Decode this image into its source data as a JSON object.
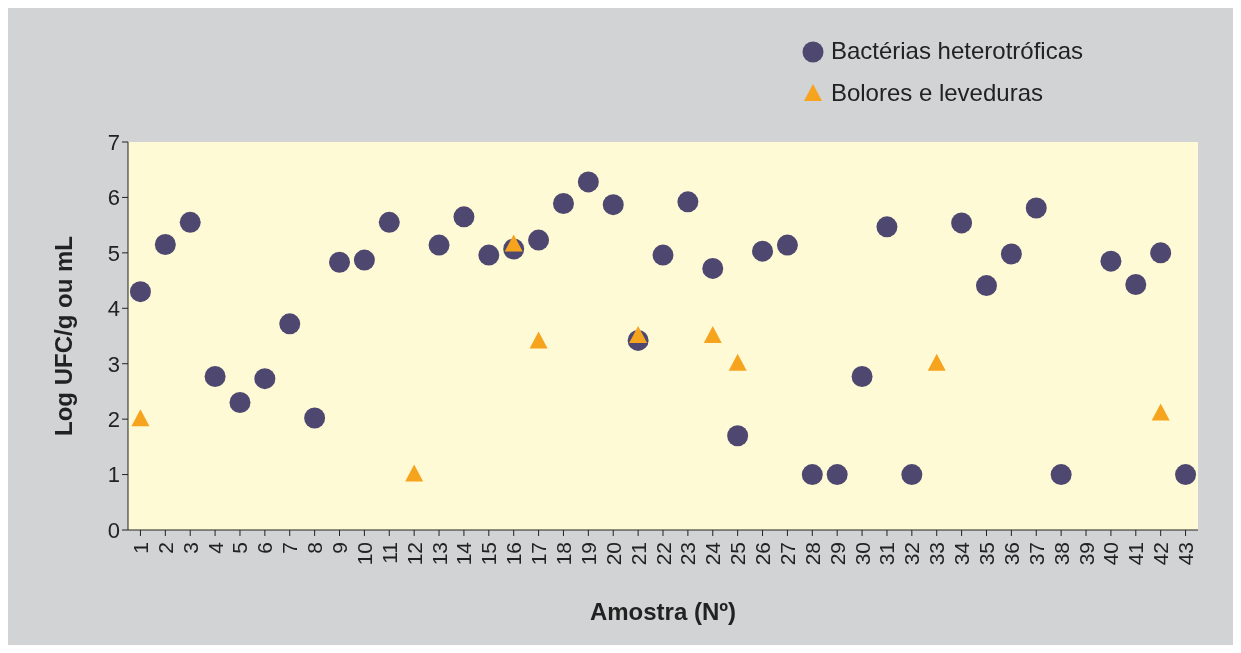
{
  "chart_data": {
    "type": "scatter",
    "xlabel": "Amostra (Nº)",
    "ylabel": "Log UFC/g ou mL",
    "categories": [
      "1",
      "2",
      "3",
      "4",
      "5",
      "6",
      "7",
      "8",
      "9",
      "10",
      "11",
      "12",
      "13",
      "14",
      "15",
      "16",
      "17",
      "18",
      "19",
      "20",
      "21",
      "22",
      "23",
      "24",
      "25",
      "26",
      "27",
      "28",
      "29",
      "30",
      "31",
      "32",
      "33",
      "34",
      "35",
      "36",
      "37",
      "38",
      "39",
      "40",
      "41",
      "42",
      "43"
    ],
    "series": [
      {
        "name": "Bactérias heterotróficas",
        "color": "#4e4870",
        "marker": "circle",
        "values": [
          4.3,
          5.15,
          5.55,
          2.77,
          2.3,
          2.73,
          3.72,
          2.02,
          4.83,
          4.87,
          5.55,
          null,
          5.14,
          5.65,
          4.96,
          5.07,
          5.23,
          5.89,
          6.28,
          5.87,
          3.42,
          4.96,
          5.92,
          4.72,
          1.7,
          5.03,
          5.14,
          1.0,
          1.0,
          2.77,
          5.47,
          1.0,
          null,
          5.54,
          4.41,
          4.98,
          5.81,
          1.0,
          null,
          4.85,
          4.43,
          5.0,
          1.0
        ]
      },
      {
        "name": "Bolores e leveduras",
        "color": "#f6a31e",
        "marker": "triangle",
        "values": [
          2.0,
          null,
          null,
          null,
          null,
          null,
          null,
          null,
          null,
          null,
          null,
          1.0,
          null,
          null,
          null,
          5.15,
          3.4,
          null,
          null,
          null,
          3.5,
          null,
          null,
          3.5,
          3.0,
          null,
          null,
          null,
          null,
          null,
          null,
          null,
          3.0,
          null,
          null,
          null,
          null,
          null,
          null,
          null,
          null,
          2.1,
          null
        ]
      }
    ],
    "ylim": [
      0,
      7
    ],
    "yticks": [
      0,
      1,
      2,
      3,
      4,
      5,
      6,
      7
    ],
    "grid": false,
    "legend": "top right"
  }
}
